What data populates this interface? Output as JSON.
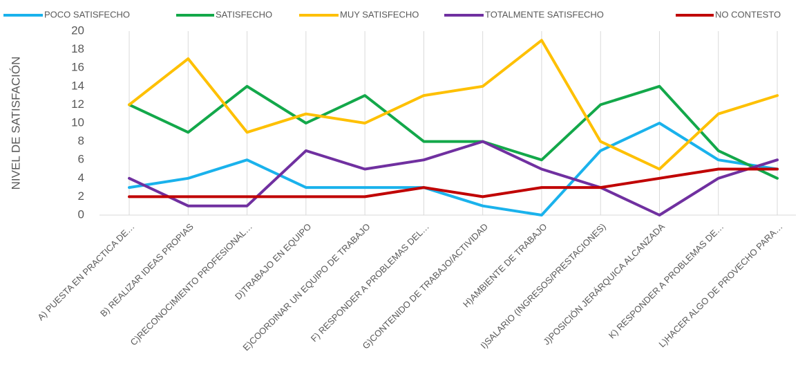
{
  "chart_data": {
    "type": "line",
    "y_label": "NIVEL DE SATISFACIÓN",
    "categories": [
      "A) PUESTA EN PRACTICA DE…",
      "B) REALIZAR IDEAS PROPIAS",
      "C)RECONOCIMIENTO PROFESIONAL…",
      "D)TRABAJO EN EQUIPO",
      "E)COORDINAR UN EQUIPO DE TRABAJO",
      "F) RESPONDER A PROBLEMAS DEL…",
      "G)CONTENIDO DE TRABAJO/ACTIVIDAD",
      "H)AMBIENTE DE TRABAJO",
      "I)SALARIO (INGRESOS/PRESTACIONES)",
      "J)POSICIÓN JERÁRQUICA ALCANZADA",
      "K) RESPONDER A PROBLEMAS DE…",
      "L)HACER ALGO DE PROVECHO PARA…"
    ],
    "series": [
      {
        "name": "POCO SATISFECHO",
        "color": "#1ab2ec",
        "values": [
          3,
          4,
          6,
          3,
          3,
          3,
          1,
          0,
          7,
          10,
          6,
          5
        ]
      },
      {
        "name": "SATISFECHO",
        "color": "#13a84a",
        "values": [
          12,
          9,
          14,
          10,
          13,
          8,
          8,
          6,
          12,
          14,
          7,
          4
        ]
      },
      {
        "name": "MUY SATISFECHO",
        "color": "#fec000",
        "values": [
          12,
          17,
          9,
          11,
          10,
          13,
          14,
          19,
          8,
          5,
          11,
          13
        ]
      },
      {
        "name": "TOTALMENTE SATISFECHO",
        "color": "#7030a0",
        "values": [
          4,
          1,
          1,
          7,
          5,
          6,
          8,
          5,
          3,
          0,
          4,
          6
        ]
      },
      {
        "name": "NO CONTESTO",
        "color": "#c00000",
        "values": [
          2,
          2,
          2,
          2,
          2,
          3,
          2,
          3,
          3,
          4,
          5,
          5
        ]
      }
    ],
    "ylim": [
      0,
      20
    ],
    "yticks": [
      0,
      2,
      4,
      6,
      8,
      10,
      12,
      14,
      16,
      18,
      20
    ],
    "grid": "x",
    "legend": "top"
  }
}
